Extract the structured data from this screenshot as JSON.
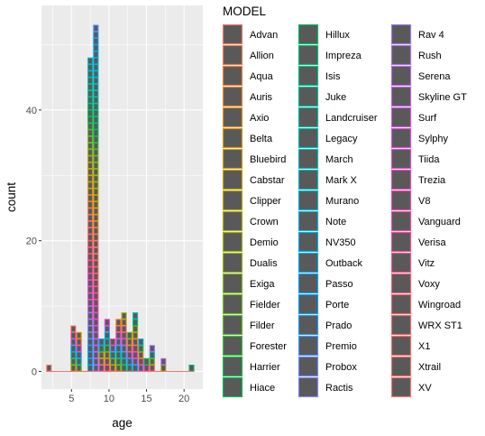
{
  "chart_data": {
    "type": "bar",
    "subtype": "histogram",
    "title": "",
    "xlabel": "age",
    "ylabel": "count",
    "xlim": [
      1,
      22.5
    ],
    "ylim": [
      -2.7,
      56
    ],
    "x_ticks": [
      5,
      10,
      15,
      20
    ],
    "y_ticks": [
      0,
      20,
      40
    ],
    "binwidth": 0.75,
    "background": "#ebebeb",
    "grid": true,
    "legend": {
      "title": "MODEL",
      "placement": "right",
      "columns": 3,
      "key_fill": "#595959",
      "items": [
        {
          "label": "Advan",
          "color": "#f8766d"
        },
        {
          "label": "Allion",
          "color": "#f47d4a"
        },
        {
          "label": "Aqua",
          "color": "#ee8239"
        },
        {
          "label": "Auris",
          "color": "#e88b2b"
        },
        {
          "label": "Axio",
          "color": "#e1921f"
        },
        {
          "label": "Belta",
          "color": "#d99a12"
        },
        {
          "label": "Bluebird",
          "color": "#d0a00b"
        },
        {
          "label": "Cabstar",
          "color": "#c6a506"
        },
        {
          "label": "Clipper",
          "color": "#bbaa05"
        },
        {
          "label": "Crown",
          "color": "#b0ae08"
        },
        {
          "label": "Demio",
          "color": "#a3b20c"
        },
        {
          "label": "Dualis",
          "color": "#95b512"
        },
        {
          "label": "Exiga",
          "color": "#86b81a"
        },
        {
          "label": "Fielder",
          "color": "#74ba25"
        },
        {
          "label": "Filder",
          "color": "#5ebc2e"
        },
        {
          "label": "Forester",
          "color": "#42bd3a"
        },
        {
          "label": "Harrier",
          "color": "#18be48"
        },
        {
          "label": "Hiace",
          "color": "#00be57"
        },
        {
          "label": "Hillux",
          "color": "#00bf68"
        },
        {
          "label": "Impreza",
          "color": "#00c079"
        },
        {
          "label": "Isis",
          "color": "#00c089"
        },
        {
          "label": "Juke",
          "color": "#00c098"
        },
        {
          "label": "Landcruiser",
          "color": "#00bfa6"
        },
        {
          "label": "Legacy",
          "color": "#00bfb3"
        },
        {
          "label": "March",
          "color": "#00bdc0"
        },
        {
          "label": "Mark X",
          "color": "#00bbcc"
        },
        {
          "label": "Murano",
          "color": "#00b9d6"
        },
        {
          "label": "Note",
          "color": "#00b6e0"
        },
        {
          "label": "NV350",
          "color": "#00b2e9"
        },
        {
          "label": "Outback",
          "color": "#00adf1"
        },
        {
          "label": "Passo",
          "color": "#00a8f8"
        },
        {
          "label": "Porte",
          "color": "#00a2fd"
        },
        {
          "label": "Prado",
          "color": "#1d9bff"
        },
        {
          "label": "Premio",
          "color": "#4c94ff"
        },
        {
          "label": "Probox",
          "color": "#6b8cff"
        },
        {
          "label": "Ractis",
          "color": "#8383ff"
        },
        {
          "label": "Rav 4",
          "color": "#9878ff"
        },
        {
          "label": "Rush",
          "color": "#aa6ffb"
        },
        {
          "label": "Serena",
          "color": "#ba66f4"
        },
        {
          "label": "Skyline GT",
          "color": "#c75deb"
        },
        {
          "label": "Surf",
          "color": "#d355e2"
        },
        {
          "label": "Sylphy",
          "color": "#de4fd8"
        },
        {
          "label": "Tiida",
          "color": "#e74acc"
        },
        {
          "label": "Trezia",
          "color": "#ee47bf"
        },
        {
          "label": "V8",
          "color": "#f446b2"
        },
        {
          "label": "Vanguard",
          "color": "#f947a4"
        },
        {
          "label": "Verisa",
          "color": "#fb4b96"
        },
        {
          "label": "Vitz",
          "color": "#fd5188"
        },
        {
          "label": "Voxy",
          "color": "#fd597b"
        },
        {
          "label": "Wingroad",
          "color": "#fc5f6f"
        },
        {
          "label": "WRX ST1",
          "color": "#fa6568"
        },
        {
          "label": "X1",
          "color": "#f96b67"
        },
        {
          "label": "Xtrail",
          "color": "#f87169"
        },
        {
          "label": "XV",
          "color": "#f8766d"
        }
      ]
    },
    "bins": [
      {
        "x": 2,
        "count": 1
      },
      {
        "x": 5.25,
        "count": 7
      },
      {
        "x": 6,
        "count": 6
      },
      {
        "x": 6.75,
        "count": 0
      },
      {
        "x": 7.5,
        "count": 48
      },
      {
        "x": 8.25,
        "count": 53
      },
      {
        "x": 9,
        "count": 5
      },
      {
        "x": 9.75,
        "count": 8
      },
      {
        "x": 10.5,
        "count": 5
      },
      {
        "x": 11.25,
        "count": 8
      },
      {
        "x": 12,
        "count": 9
      },
      {
        "x": 12.75,
        "count": 6
      },
      {
        "x": 13.5,
        "count": 9
      },
      {
        "x": 14.25,
        "count": 5
      },
      {
        "x": 15,
        "count": 2
      },
      {
        "x": 15.75,
        "count": 4
      },
      {
        "x": 16.5,
        "count": 0
      },
      {
        "x": 17.25,
        "count": 2
      },
      {
        "x": 21,
        "count": 1
      }
    ]
  }
}
